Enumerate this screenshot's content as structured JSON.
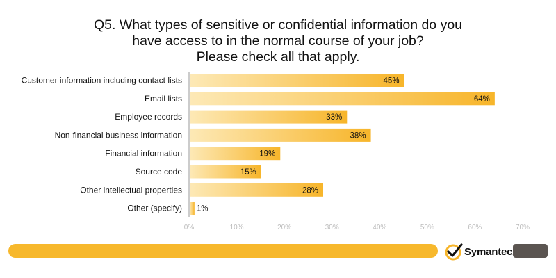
{
  "chart_data": {
    "type": "bar",
    "orientation": "horizontal",
    "title_lines": [
      "Q5. What types of sensitive or confidential information do you",
      "have access to in the normal course of your job?",
      "Please check  all that apply."
    ],
    "categories": [
      "Customer information including contact lists",
      "Email lists",
      "Employee records",
      "Non-financial business information",
      "Financial information",
      "Source code",
      "Other intellectual properties",
      "Other (specify)"
    ],
    "values": [
      45,
      64,
      33,
      38,
      19,
      15,
      28,
      1
    ],
    "value_labels": [
      "45%",
      "64%",
      "33%",
      "38%",
      "19%",
      "15%",
      "28%",
      "1%"
    ],
    "xlim": [
      0,
      70
    ],
    "ticks": [
      0,
      10,
      20,
      30,
      40,
      50,
      60,
      70
    ],
    "tick_labels": [
      "0%",
      "10%",
      "20%",
      "30%",
      "40%",
      "50%",
      "60%",
      "70%"
    ],
    "grid": false,
    "legend": "none",
    "colors": {
      "bar_start": "#fde9b6",
      "bar_end": "#f7b52a",
      "footer": "#f7b82c",
      "footer_dark": "#5b5551"
    }
  },
  "footer": {
    "brand": "Symantec",
    "logo_icon": "checkmark-circle-icon"
  }
}
